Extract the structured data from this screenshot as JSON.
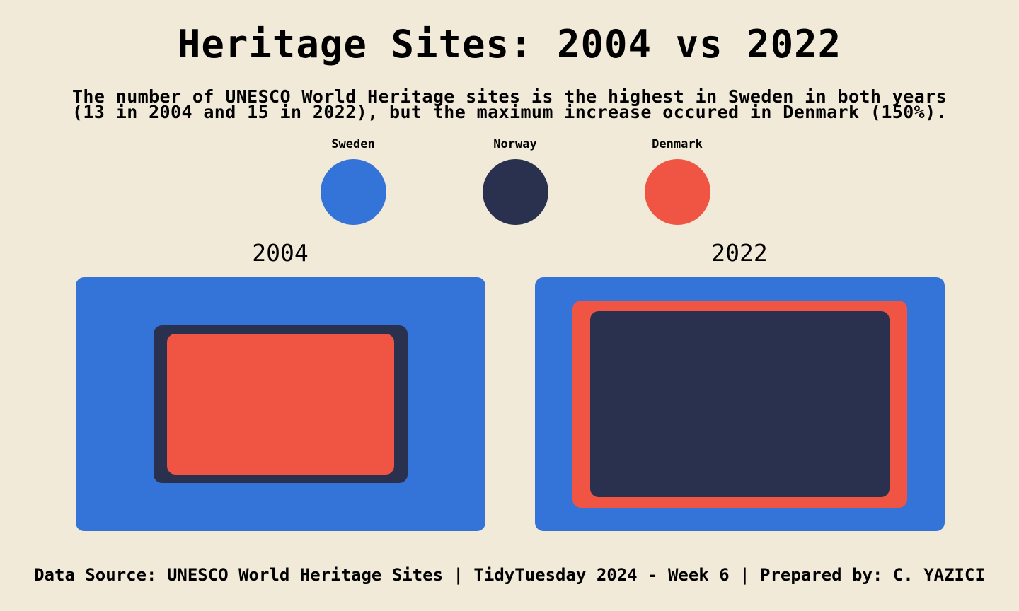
{
  "title": "Heritage Sites: 2004 vs 2022",
  "subtitle": [
    "The number of UNESCO World Heritage sites is the highest in Sweden in both years",
    "(13 in 2004 and 15 in 2022), but the maximum increase occured in Denmark (150%)."
  ],
  "caption": "Data Source: UNESCO World Heritage Sites | TidyTuesday 2024 - Week 6 | Prepared by: C. YAZICI",
  "colors": {
    "background": "#f1ead8",
    "Sweden": "#3474d8",
    "Norway": "#29314f",
    "Denmark": "#f05442"
  },
  "chart_data": {
    "type": "nested-squares",
    "legend": [
      "Sweden",
      "Norway",
      "Denmark"
    ],
    "legend_position": "top",
    "panels": [
      {
        "label": "2004",
        "values": [
          {
            "country": "Sweden",
            "sites": 13
          },
          {
            "country": "Norway",
            "sites": 5
          },
          {
            "country": "Denmark",
            "sites": 4
          }
        ]
      },
      {
        "label": "2022",
        "values": [
          {
            "country": "Sweden",
            "sites": 15
          },
          {
            "country": "Norway",
            "sites": 8
          },
          {
            "country": "Denmark",
            "sites": 10
          }
        ]
      }
    ]
  }
}
